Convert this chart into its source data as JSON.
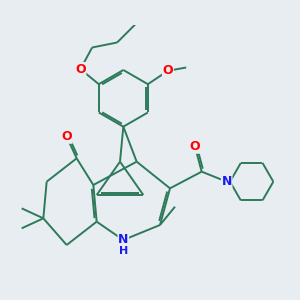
{
  "background_color": "#e8edf2",
  "bond_color": "#2d7a5a",
  "atom_colors": {
    "O": "#ff0000",
    "N": "#1a1aee",
    "C": "#2d7a5a",
    "H": "#1a1aee"
  },
  "line_width": 1.4,
  "font_size_atom": 9,
  "fig_width": 3.0,
  "fig_height": 3.0,
  "dpi": 100
}
